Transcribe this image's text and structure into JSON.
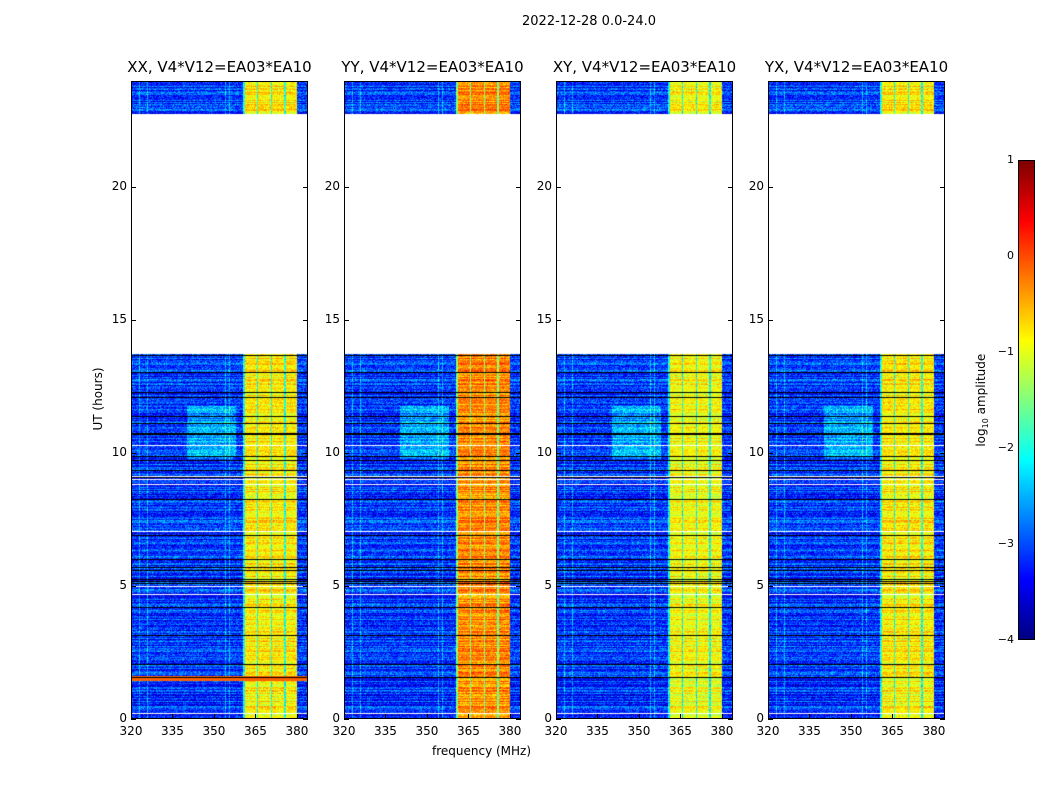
{
  "chart_data": {
    "type": "heatmap",
    "title": "2022-12-28 0.0-24.0",
    "xlabel": "frequency (MHz)",
    "ylabel": "UT (hours)",
    "xlim": [
      320,
      384
    ],
    "ylim": [
      0,
      24
    ],
    "xticks": [
      "320",
      "335",
      "350",
      "365",
      "380"
    ],
    "xtick_values": [
      320,
      335,
      350,
      365,
      380
    ],
    "yticks": [
      "0",
      "5",
      "10",
      "15",
      "20"
    ],
    "ytick_values": [
      0,
      5,
      10,
      15,
      20
    ],
    "data_time_ranges_hours": [
      [
        0,
        13.75
      ],
      [
        22.8,
        24
      ]
    ],
    "rfi_band_mhz": [
      360.5,
      380
    ],
    "panels": [
      {
        "title": "XX, V4*V12=EA03*EA10",
        "band_level": -0.8
      },
      {
        "title": "YY, V4*V12=EA03*EA10",
        "band_level": -0.3
      },
      {
        "title": "XY, V4*V12=EA03*EA10",
        "band_level": -0.9
      },
      {
        "title": "YX, V4*V12=EA03*EA10",
        "band_level": -0.8
      }
    ],
    "colorbar": {
      "label_prefix": "log",
      "label_sub": "10",
      "label_suffix": " amplitude",
      "range": [
        -4,
        1
      ],
      "ticks": [
        "1",
        "0",
        "−1",
        "−2",
        "−3",
        "−4"
      ],
      "tick_values": [
        1,
        0,
        -1,
        -2,
        -3,
        -4
      ],
      "colormap": "jet"
    }
  }
}
